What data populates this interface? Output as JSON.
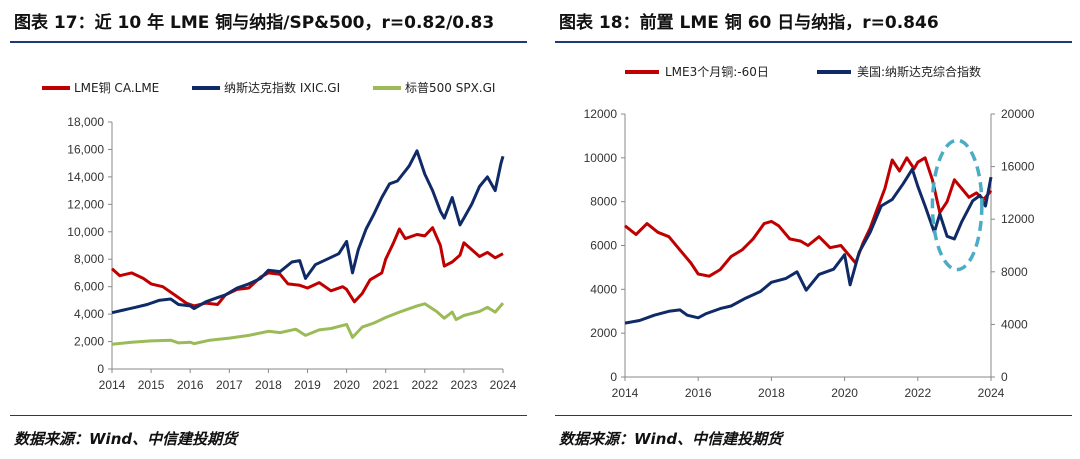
{
  "left": {
    "title": "图表 17：近 10 年 LME 铜与纳指/SP&500，r=0.82/0.83",
    "source": "数据来源：Wind、中信建投期货"
  },
  "right": {
    "title": "图表 18：前置 LME 铜 60 日与纳指，r=0.846",
    "source": "数据来源：Wind、中信建投期货"
  },
  "chart_data": [
    {
      "type": "line",
      "title": "图表 17：近 10 年 LME 铜与纳指/SP&500，r=0.82/0.83",
      "legend_position": "top",
      "grid": false,
      "ylim": [
        0,
        18000
      ],
      "y_ticks": [
        "0",
        "2,000",
        "4,000",
        "6,000",
        "8,000",
        "10,000",
        "12,000",
        "14,000",
        "16,000",
        "18,000"
      ],
      "xlim": [
        2014,
        2024
      ],
      "x_ticks": [
        "2014",
        "2015",
        "2016",
        "2017",
        "2018",
        "2019",
        "2020",
        "2021",
        "2022",
        "2023",
        "2024"
      ],
      "series": [
        {
          "name": "LME铜 CA.LME",
          "color": "#c00000",
          "points": [
            [
              2014.0,
              7300
            ],
            [
              2014.2,
              6800
            ],
            [
              2014.5,
              7000
            ],
            [
              2014.8,
              6600
            ],
            [
              2015.0,
              6200
            ],
            [
              2015.3,
              6000
            ],
            [
              2015.6,
              5400
            ],
            [
              2015.9,
              4800
            ],
            [
              2016.1,
              4600
            ],
            [
              2016.4,
              4800
            ],
            [
              2016.7,
              4700
            ],
            [
              2016.9,
              5400
            ],
            [
              2017.2,
              5800
            ],
            [
              2017.5,
              5900
            ],
            [
              2017.8,
              6700
            ],
            [
              2018.0,
              7000
            ],
            [
              2018.3,
              6900
            ],
            [
              2018.5,
              6200
            ],
            [
              2018.8,
              6100
            ],
            [
              2019.0,
              5900
            ],
            [
              2019.3,
              6300
            ],
            [
              2019.6,
              5700
            ],
            [
              2019.9,
              6000
            ],
            [
              2020.0,
              5800
            ],
            [
              2020.2,
              4900
            ],
            [
              2020.4,
              5500
            ],
            [
              2020.6,
              6500
            ],
            [
              2020.9,
              7000
            ],
            [
              2021.0,
              8000
            ],
            [
              2021.2,
              9200
            ],
            [
              2021.35,
              10200
            ],
            [
              2021.5,
              9500
            ],
            [
              2021.8,
              9800
            ],
            [
              2022.0,
              9700
            ],
            [
              2022.2,
              10300
            ],
            [
              2022.4,
              9000
            ],
            [
              2022.5,
              7500
            ],
            [
              2022.7,
              7800
            ],
            [
              2022.9,
              8300
            ],
            [
              2023.0,
              9200
            ],
            [
              2023.2,
              8700
            ],
            [
              2023.4,
              8200
            ],
            [
              2023.6,
              8500
            ],
            [
              2023.8,
              8100
            ],
            [
              2024.0,
              8400
            ]
          ]
        },
        {
          "name": "纳斯达克指数 IXIC.GI",
          "color": "#0f2a66",
          "points": [
            [
              2014.0,
              4100
            ],
            [
              2014.3,
              4300
            ],
            [
              2014.6,
              4500
            ],
            [
              2014.9,
              4700
            ],
            [
              2015.2,
              5000
            ],
            [
              2015.5,
              5100
            ],
            [
              2015.7,
              4700
            ],
            [
              2016.0,
              4600
            ],
            [
              2016.1,
              4400
            ],
            [
              2016.4,
              4900
            ],
            [
              2016.7,
              5200
            ],
            [
              2016.9,
              5400
            ],
            [
              2017.2,
              5900
            ],
            [
              2017.5,
              6200
            ],
            [
              2017.8,
              6600
            ],
            [
              2018.0,
              7200
            ],
            [
              2018.3,
              7100
            ],
            [
              2018.6,
              7800
            ],
            [
              2018.8,
              7900
            ],
            [
              2018.95,
              6600
            ],
            [
              2019.2,
              7600
            ],
            [
              2019.5,
              8000
            ],
            [
              2019.8,
              8400
            ],
            [
              2020.0,
              9300
            ],
            [
              2020.15,
              7000
            ],
            [
              2020.3,
              8700
            ],
            [
              2020.5,
              10200
            ],
            [
              2020.7,
              11300
            ],
            [
              2020.9,
              12500
            ],
            [
              2021.1,
              13500
            ],
            [
              2021.3,
              13700
            ],
            [
              2021.6,
              14800
            ],
            [
              2021.8,
              15900
            ],
            [
              2022.0,
              14200
            ],
            [
              2022.2,
              13000
            ],
            [
              2022.4,
              11500
            ],
            [
              2022.5,
              11000
            ],
            [
              2022.7,
              12500
            ],
            [
              2022.9,
              10500
            ],
            [
              2023.0,
              11000
            ],
            [
              2023.2,
              12000
            ],
            [
              2023.4,
              13300
            ],
            [
              2023.6,
              14000
            ],
            [
              2023.8,
              13000
            ],
            [
              2023.95,
              15000
            ],
            [
              2024.0,
              15500
            ]
          ]
        },
        {
          "name": "标普500 SPX.GI",
          "color": "#9bbb59",
          "points": [
            [
              2014.0,
              1800
            ],
            [
              2014.5,
              1950
            ],
            [
              2015.0,
              2050
            ],
            [
              2015.5,
              2100
            ],
            [
              2015.7,
              1900
            ],
            [
              2016.0,
              1950
            ],
            [
              2016.1,
              1850
            ],
            [
              2016.5,
              2100
            ],
            [
              2017.0,
              2250
            ],
            [
              2017.5,
              2450
            ],
            [
              2018.0,
              2750
            ],
            [
              2018.3,
              2650
            ],
            [
              2018.7,
              2900
            ],
            [
              2018.95,
              2450
            ],
            [
              2019.3,
              2850
            ],
            [
              2019.6,
              2950
            ],
            [
              2020.0,
              3250
            ],
            [
              2020.15,
              2300
            ],
            [
              2020.4,
              3050
            ],
            [
              2020.7,
              3350
            ],
            [
              2021.0,
              3750
            ],
            [
              2021.4,
              4200
            ],
            [
              2021.8,
              4600
            ],
            [
              2022.0,
              4750
            ],
            [
              2022.3,
              4200
            ],
            [
              2022.5,
              3700
            ],
            [
              2022.7,
              4150
            ],
            [
              2022.8,
              3600
            ],
            [
              2023.0,
              3900
            ],
            [
              2023.4,
              4200
            ],
            [
              2023.6,
              4500
            ],
            [
              2023.8,
              4150
            ],
            [
              2024.0,
              4800
            ]
          ]
        }
      ]
    },
    {
      "type": "line",
      "title": "图表 18：前置 LME 铜 60 日与纳指，r=0.846",
      "legend_position": "top",
      "grid": false,
      "ylim_left": [
        0,
        12000
      ],
      "ylim_right": [
        0,
        20000
      ],
      "y_ticks_left": [
        "0",
        "2000",
        "4000",
        "6000",
        "8000",
        "10000",
        "12000"
      ],
      "y_ticks_right": [
        "0",
        "4000",
        "8000",
        "12000",
        "16000",
        "20000"
      ],
      "xlim": [
        2014,
        2024
      ],
      "x_ticks": [
        "2014",
        "2016",
        "2018",
        "2020",
        "2022",
        "2024"
      ],
      "annotation": "dashed ellipse highlighting 2022-2024",
      "annotation_color": "#4bacc6",
      "series": [
        {
          "name": "LME3个月铜:-60日",
          "axis": "left",
          "color": "#c00000",
          "points": [
            [
              2014.0,
              6900
            ],
            [
              2014.3,
              6500
            ],
            [
              2014.6,
              7000
            ],
            [
              2014.9,
              6600
            ],
            [
              2015.2,
              6400
            ],
            [
              2015.5,
              5800
            ],
            [
              2015.8,
              5200
            ],
            [
              2016.0,
              4700
            ],
            [
              2016.3,
              4600
            ],
            [
              2016.6,
              4900
            ],
            [
              2016.9,
              5500
            ],
            [
              2017.2,
              5800
            ],
            [
              2017.5,
              6300
            ],
            [
              2017.8,
              7000
            ],
            [
              2018.0,
              7100
            ],
            [
              2018.2,
              6900
            ],
            [
              2018.5,
              6300
            ],
            [
              2018.8,
              6200
            ],
            [
              2019.0,
              6000
            ],
            [
              2019.3,
              6400
            ],
            [
              2019.6,
              5900
            ],
            [
              2019.9,
              6000
            ],
            [
              2020.1,
              5600
            ],
            [
              2020.3,
              5200
            ],
            [
              2020.5,
              6100
            ],
            [
              2020.7,
              6800
            ],
            [
              2020.9,
              7700
            ],
            [
              2021.1,
              8600
            ],
            [
              2021.3,
              9900
            ],
            [
              2021.5,
              9400
            ],
            [
              2021.7,
              10000
            ],
            [
              2021.9,
              9500
            ],
            [
              2022.0,
              9800
            ],
            [
              2022.2,
              10000
            ],
            [
              2022.4,
              9000
            ],
            [
              2022.6,
              7500
            ],
            [
              2022.8,
              8000
            ],
            [
              2023.0,
              9000
            ],
            [
              2023.2,
              8600
            ],
            [
              2023.4,
              8200
            ],
            [
              2023.6,
              8400
            ],
            [
              2023.8,
              8100
            ],
            [
              2024.0,
              8500
            ]
          ]
        },
        {
          "name": "美国:纳斯达克综合指数",
          "axis": "right",
          "color": "#0f2a66",
          "points": [
            [
              2014.0,
              4100
            ],
            [
              2014.4,
              4300
            ],
            [
              2014.8,
              4700
            ],
            [
              2015.2,
              5000
            ],
            [
              2015.5,
              5100
            ],
            [
              2015.7,
              4700
            ],
            [
              2016.0,
              4500
            ],
            [
              2016.2,
              4800
            ],
            [
              2016.6,
              5200
            ],
            [
              2016.9,
              5400
            ],
            [
              2017.3,
              6000
            ],
            [
              2017.7,
              6500
            ],
            [
              2018.0,
              7200
            ],
            [
              2018.4,
              7500
            ],
            [
              2018.7,
              8000
            ],
            [
              2018.95,
              6600
            ],
            [
              2019.3,
              7800
            ],
            [
              2019.7,
              8200
            ],
            [
              2020.0,
              9300
            ],
            [
              2020.15,
              7000
            ],
            [
              2020.4,
              9500
            ],
            [
              2020.7,
              11000
            ],
            [
              2021.0,
              13000
            ],
            [
              2021.3,
              13500
            ],
            [
              2021.6,
              14700
            ],
            [
              2021.85,
              15800
            ],
            [
              2022.0,
              14500
            ],
            [
              2022.2,
              13000
            ],
            [
              2022.45,
              11000
            ],
            [
              2022.6,
              12400
            ],
            [
              2022.8,
              10700
            ],
            [
              2023.0,
              10500
            ],
            [
              2023.2,
              11800
            ],
            [
              2023.5,
              13400
            ],
            [
              2023.7,
              13800
            ],
            [
              2023.85,
              13000
            ],
            [
              2024.0,
              15200
            ]
          ]
        }
      ]
    }
  ]
}
